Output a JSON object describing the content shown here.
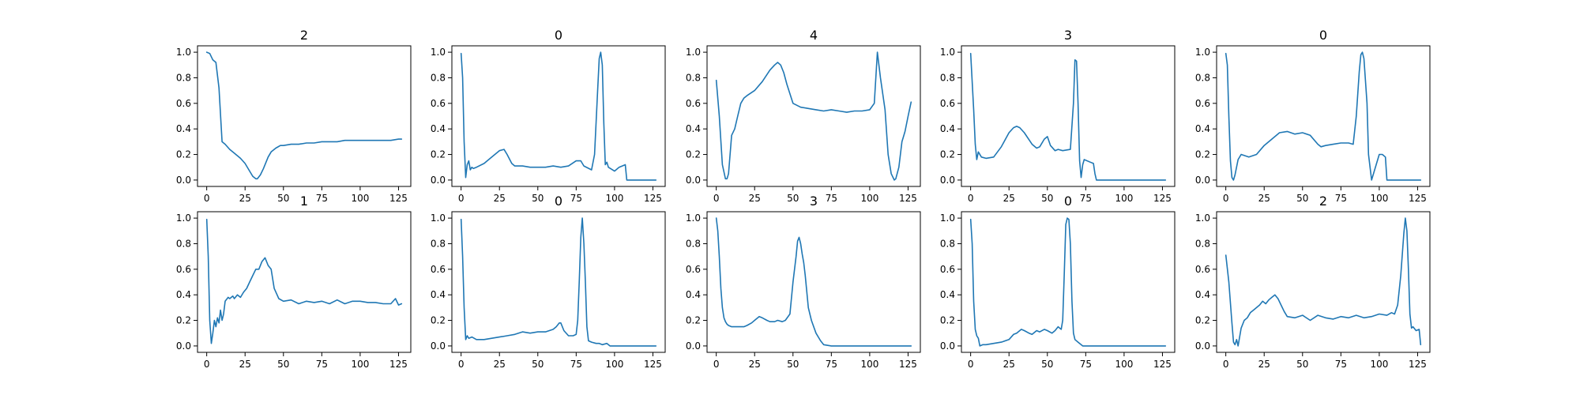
{
  "chart_data": [
    {
      "type": "line",
      "title": "2",
      "xlim": [
        -6,
        133
      ],
      "ylim": [
        -0.05,
        1.05
      ],
      "x_ticks": [
        0,
        25,
        50,
        75,
        100,
        125
      ],
      "y_ticks": [
        0.0,
        0.2,
        0.4,
        0.6,
        0.8,
        1.0
      ],
      "color": "#1f77b4",
      "x": [
        0,
        2,
        4,
        6,
        8,
        10,
        12,
        15,
        18,
        22,
        25,
        28,
        30,
        32,
        33,
        35,
        37,
        40,
        42,
        45,
        48,
        50,
        55,
        60,
        65,
        70,
        75,
        80,
        85,
        90,
        95,
        100,
        105,
        110,
        115,
        120,
        125,
        127
      ],
      "y": [
        1.0,
        0.99,
        0.94,
        0.92,
        0.72,
        0.3,
        0.28,
        0.24,
        0.21,
        0.17,
        0.13,
        0.07,
        0.03,
        0.01,
        0.01,
        0.04,
        0.09,
        0.18,
        0.22,
        0.25,
        0.27,
        0.27,
        0.28,
        0.28,
        0.29,
        0.29,
        0.3,
        0.3,
        0.3,
        0.31,
        0.31,
        0.31,
        0.31,
        0.31,
        0.31,
        0.31,
        0.32,
        0.32
      ]
    },
    {
      "type": "line",
      "title": "0",
      "xlim": [
        -6,
        133
      ],
      "ylim": [
        -0.05,
        1.05
      ],
      "x_ticks": [
        0,
        25,
        50,
        75,
        100,
        125
      ],
      "y_ticks": [
        0.0,
        0.2,
        0.4,
        0.6,
        0.8,
        1.0
      ],
      "color": "#1f77b4",
      "x": [
        0,
        1,
        2,
        3,
        4,
        5,
        6,
        7,
        8,
        10,
        15,
        20,
        25,
        28,
        30,
        33,
        35,
        40,
        45,
        50,
        55,
        60,
        65,
        70,
        75,
        78,
        80,
        85,
        87,
        89,
        90,
        91,
        92,
        93,
        94,
        95,
        96,
        100,
        103,
        105,
        107,
        108,
        110,
        115,
        120,
        125,
        127
      ],
      "y": [
        0.99,
        0.8,
        0.3,
        0.02,
        0.12,
        0.15,
        0.08,
        0.1,
        0.09,
        0.1,
        0.13,
        0.18,
        0.23,
        0.24,
        0.2,
        0.13,
        0.11,
        0.11,
        0.1,
        0.1,
        0.1,
        0.11,
        0.1,
        0.11,
        0.15,
        0.15,
        0.11,
        0.08,
        0.2,
        0.7,
        0.95,
        1.0,
        0.9,
        0.45,
        0.12,
        0.14,
        0.1,
        0.07,
        0.1,
        0.11,
        0.12,
        0.0,
        0.0,
        0.0,
        0.0,
        0.0,
        0.0
      ]
    },
    {
      "type": "line",
      "title": "4",
      "xlim": [
        -6,
        133
      ],
      "ylim": [
        -0.05,
        1.05
      ],
      "x_ticks": [
        0,
        25,
        50,
        75,
        100,
        125
      ],
      "y_ticks": [
        0.0,
        0.2,
        0.4,
        0.6,
        0.8,
        1.0
      ],
      "color": "#1f77b4",
      "x": [
        0,
        2,
        4,
        6,
        7,
        8,
        10,
        12,
        14,
        16,
        18,
        20,
        25,
        30,
        35,
        38,
        40,
        42,
        44,
        46,
        50,
        55,
        60,
        65,
        70,
        75,
        80,
        85,
        90,
        95,
        100,
        103,
        105,
        107,
        110,
        112,
        114,
        116,
        117,
        119,
        121,
        123,
        125,
        127
      ],
      "y": [
        0.78,
        0.5,
        0.12,
        0.01,
        0.01,
        0.05,
        0.35,
        0.4,
        0.5,
        0.6,
        0.64,
        0.66,
        0.7,
        0.77,
        0.86,
        0.9,
        0.92,
        0.9,
        0.84,
        0.75,
        0.6,
        0.57,
        0.56,
        0.55,
        0.54,
        0.55,
        0.54,
        0.53,
        0.54,
        0.54,
        0.55,
        0.6,
        1.0,
        0.8,
        0.55,
        0.2,
        0.05,
        0.0,
        0.01,
        0.1,
        0.3,
        0.38,
        0.5,
        0.61
      ]
    },
    {
      "type": "line",
      "title": "3",
      "xlim": [
        -6,
        133
      ],
      "ylim": [
        -0.05,
        1.05
      ],
      "x_ticks": [
        0,
        25,
        50,
        75,
        100,
        125
      ],
      "y_ticks": [
        0.0,
        0.2,
        0.4,
        0.6,
        0.8,
        1.0
      ],
      "color": "#1f77b4",
      "x": [
        0,
        2,
        3,
        4,
        5,
        7,
        10,
        15,
        20,
        25,
        28,
        30,
        32,
        35,
        40,
        43,
        45,
        48,
        50,
        52,
        55,
        57,
        60,
        65,
        67,
        68,
        69,
        70,
        71,
        72,
        73,
        74,
        78,
        80,
        81,
        82,
        85,
        90,
        100,
        110,
        120,
        127
      ],
      "y": [
        0.99,
        0.55,
        0.28,
        0.16,
        0.22,
        0.18,
        0.17,
        0.18,
        0.26,
        0.37,
        0.41,
        0.42,
        0.41,
        0.37,
        0.28,
        0.25,
        0.26,
        0.32,
        0.34,
        0.27,
        0.23,
        0.24,
        0.23,
        0.24,
        0.6,
        0.94,
        0.93,
        0.6,
        0.15,
        0.02,
        0.12,
        0.16,
        0.14,
        0.13,
        0.05,
        0.0,
        0.0,
        0.0,
        0.0,
        0.0,
        0.0,
        0.0
      ]
    },
    {
      "type": "line",
      "title": "0",
      "xlim": [
        -6,
        133
      ],
      "ylim": [
        -0.05,
        1.05
      ],
      "x_ticks": [
        0,
        25,
        50,
        75,
        100,
        125
      ],
      "y_ticks": [
        0.0,
        0.2,
        0.4,
        0.6,
        0.8,
        1.0
      ],
      "color": "#1f77b4",
      "x": [
        0,
        1,
        2,
        3,
        4,
        5,
        6,
        8,
        10,
        15,
        20,
        25,
        30,
        35,
        40,
        45,
        50,
        55,
        60,
        62,
        65,
        70,
        75,
        80,
        83,
        85,
        87,
        88,
        89,
        90,
        92,
        93,
        95,
        98,
        100,
        102,
        104,
        105,
        110,
        115,
        120,
        125,
        127
      ],
      "y": [
        0.99,
        0.9,
        0.5,
        0.15,
        0.02,
        0.0,
        0.04,
        0.16,
        0.2,
        0.18,
        0.2,
        0.27,
        0.32,
        0.37,
        0.38,
        0.36,
        0.37,
        0.35,
        0.28,
        0.26,
        0.27,
        0.28,
        0.29,
        0.29,
        0.28,
        0.5,
        0.85,
        0.98,
        1.0,
        0.95,
        0.6,
        0.2,
        0.0,
        0.12,
        0.2,
        0.2,
        0.18,
        0.0,
        0.0,
        0.0,
        0.0,
        0.0,
        0.0
      ]
    },
    {
      "type": "line",
      "title": "1",
      "xlim": [
        -6,
        133
      ],
      "ylim": [
        -0.05,
        1.05
      ],
      "x_ticks": [
        0,
        25,
        50,
        75,
        100,
        125
      ],
      "y_ticks": [
        0.0,
        0.2,
        0.4,
        0.6,
        0.8,
        1.0
      ],
      "color": "#1f77b4",
      "x": [
        0,
        1,
        2,
        3,
        4,
        5,
        6,
        7,
        8,
        9,
        10,
        11,
        12,
        14,
        15,
        17,
        18,
        20,
        22,
        24,
        26,
        28,
        30,
        32,
        34,
        36,
        38,
        40,
        42,
        44,
        47,
        50,
        55,
        60,
        65,
        70,
        75,
        80,
        85,
        90,
        95,
        100,
        105,
        110,
        115,
        120,
        123,
        125,
        127
      ],
      "y": [
        0.99,
        0.7,
        0.2,
        0.02,
        0.1,
        0.2,
        0.15,
        0.22,
        0.18,
        0.28,
        0.2,
        0.25,
        0.35,
        0.38,
        0.37,
        0.39,
        0.37,
        0.4,
        0.38,
        0.42,
        0.45,
        0.5,
        0.55,
        0.6,
        0.6,
        0.66,
        0.69,
        0.63,
        0.6,
        0.45,
        0.37,
        0.35,
        0.36,
        0.33,
        0.35,
        0.34,
        0.35,
        0.33,
        0.36,
        0.33,
        0.35,
        0.35,
        0.34,
        0.34,
        0.33,
        0.33,
        0.37,
        0.32,
        0.33
      ]
    },
    {
      "type": "line",
      "title": "0",
      "xlim": [
        -6,
        133
      ],
      "ylim": [
        -0.05,
        1.05
      ],
      "x_ticks": [
        0,
        25,
        50,
        75,
        100,
        125
      ],
      "y_ticks": [
        0.0,
        0.2,
        0.4,
        0.6,
        0.8,
        1.0
      ],
      "color": "#1f77b4",
      "x": [
        0,
        1,
        2,
        3,
        4,
        5,
        7,
        10,
        15,
        20,
        25,
        30,
        35,
        40,
        45,
        50,
        55,
        60,
        62,
        64,
        65,
        67,
        70,
        73,
        75,
        76,
        77,
        78,
        79,
        80,
        81,
        82,
        83,
        85,
        88,
        90,
        92,
        95,
        97,
        100,
        105,
        110,
        115,
        120,
        125,
        127
      ],
      "y": [
        0.99,
        0.7,
        0.3,
        0.05,
        0.08,
        0.06,
        0.07,
        0.05,
        0.05,
        0.06,
        0.07,
        0.08,
        0.09,
        0.11,
        0.1,
        0.11,
        0.11,
        0.13,
        0.15,
        0.18,
        0.18,
        0.12,
        0.08,
        0.08,
        0.09,
        0.2,
        0.5,
        0.85,
        1.0,
        0.8,
        0.5,
        0.15,
        0.04,
        0.03,
        0.02,
        0.02,
        0.01,
        0.02,
        0.0,
        0.0,
        0.0,
        0.0,
        0.0,
        0.0,
        0.0,
        0.0
      ]
    },
    {
      "type": "line",
      "title": "3",
      "xlim": [
        -6,
        133
      ],
      "ylim": [
        -0.05,
        1.05
      ],
      "x_ticks": [
        0,
        25,
        50,
        75,
        100,
        125
      ],
      "y_ticks": [
        0.0,
        0.2,
        0.4,
        0.6,
        0.8,
        1.0
      ],
      "color": "#1f77b4",
      "x": [
        0,
        1,
        2,
        3,
        4,
        5,
        6,
        7,
        8,
        10,
        12,
        15,
        18,
        20,
        23,
        25,
        28,
        30,
        33,
        35,
        38,
        40,
        43,
        45,
        48,
        50,
        52,
        53,
        54,
        55,
        56,
        57,
        58,
        60,
        62,
        65,
        68,
        70,
        75,
        80,
        90,
        100,
        110,
        120,
        127
      ],
      "y": [
        1.0,
        0.9,
        0.7,
        0.45,
        0.3,
        0.22,
        0.19,
        0.17,
        0.16,
        0.15,
        0.15,
        0.15,
        0.15,
        0.16,
        0.18,
        0.2,
        0.23,
        0.22,
        0.2,
        0.19,
        0.19,
        0.2,
        0.19,
        0.2,
        0.25,
        0.5,
        0.7,
        0.82,
        0.85,
        0.8,
        0.72,
        0.65,
        0.55,
        0.3,
        0.2,
        0.1,
        0.04,
        0.01,
        0.0,
        0.0,
        0.0,
        0.0,
        0.0,
        0.0,
        0.0
      ]
    },
    {
      "type": "line",
      "title": "0",
      "xlim": [
        -6,
        133
      ],
      "ylim": [
        -0.05,
        1.05
      ],
      "x_ticks": [
        0,
        25,
        50,
        75,
        100,
        125
      ],
      "y_ticks": [
        0.0,
        0.2,
        0.4,
        0.6,
        0.8,
        1.0
      ],
      "color": "#1f77b4",
      "x": [
        0,
        1,
        2,
        3,
        4,
        5,
        6,
        8,
        10,
        15,
        20,
        25,
        28,
        30,
        33,
        35,
        38,
        40,
        43,
        45,
        48,
        50,
        53,
        55,
        57,
        58,
        59,
        60,
        61,
        62,
        63,
        64,
        65,
        66,
        67,
        68,
        70,
        73,
        75,
        80,
        90,
        100,
        110,
        120,
        127
      ],
      "y": [
        0.99,
        0.8,
        0.35,
        0.13,
        0.08,
        0.06,
        0.0,
        0.01,
        0.01,
        0.02,
        0.03,
        0.05,
        0.09,
        0.1,
        0.13,
        0.12,
        0.1,
        0.09,
        0.12,
        0.11,
        0.13,
        0.12,
        0.1,
        0.12,
        0.15,
        0.14,
        0.13,
        0.2,
        0.55,
        0.95,
        1.0,
        0.99,
        0.8,
        0.35,
        0.1,
        0.05,
        0.03,
        0.0,
        0.0,
        0.0,
        0.0,
        0.0,
        0.0,
        0.0,
        0.0
      ]
    },
    {
      "type": "line",
      "title": "2",
      "xlim": [
        -6,
        133
      ],
      "ylim": [
        -0.05,
        1.05
      ],
      "x_ticks": [
        0,
        25,
        50,
        75,
        100,
        125
      ],
      "y_ticks": [
        0.0,
        0.2,
        0.4,
        0.6,
        0.8,
        1.0
      ],
      "color": "#1f77b4",
      "x": [
        0,
        2,
        4,
        5,
        6,
        7,
        8,
        10,
        12,
        14,
        16,
        18,
        20,
        22,
        24,
        26,
        28,
        30,
        32,
        34,
        36,
        38,
        40,
        45,
        50,
        55,
        60,
        65,
        70,
        75,
        80,
        85,
        90,
        95,
        100,
        105,
        108,
        110,
        112,
        114,
        116,
        117,
        118,
        119,
        120,
        121,
        122,
        124,
        126,
        127
      ],
      "y": [
        0.71,
        0.5,
        0.18,
        0.03,
        0.01,
        0.05,
        0.0,
        0.14,
        0.2,
        0.22,
        0.26,
        0.28,
        0.3,
        0.32,
        0.35,
        0.33,
        0.36,
        0.38,
        0.4,
        0.37,
        0.32,
        0.27,
        0.23,
        0.22,
        0.24,
        0.2,
        0.24,
        0.22,
        0.21,
        0.23,
        0.22,
        0.24,
        0.22,
        0.23,
        0.25,
        0.24,
        0.26,
        0.25,
        0.32,
        0.55,
        0.88,
        1.0,
        0.9,
        0.6,
        0.25,
        0.14,
        0.15,
        0.12,
        0.13,
        0.01
      ]
    }
  ]
}
